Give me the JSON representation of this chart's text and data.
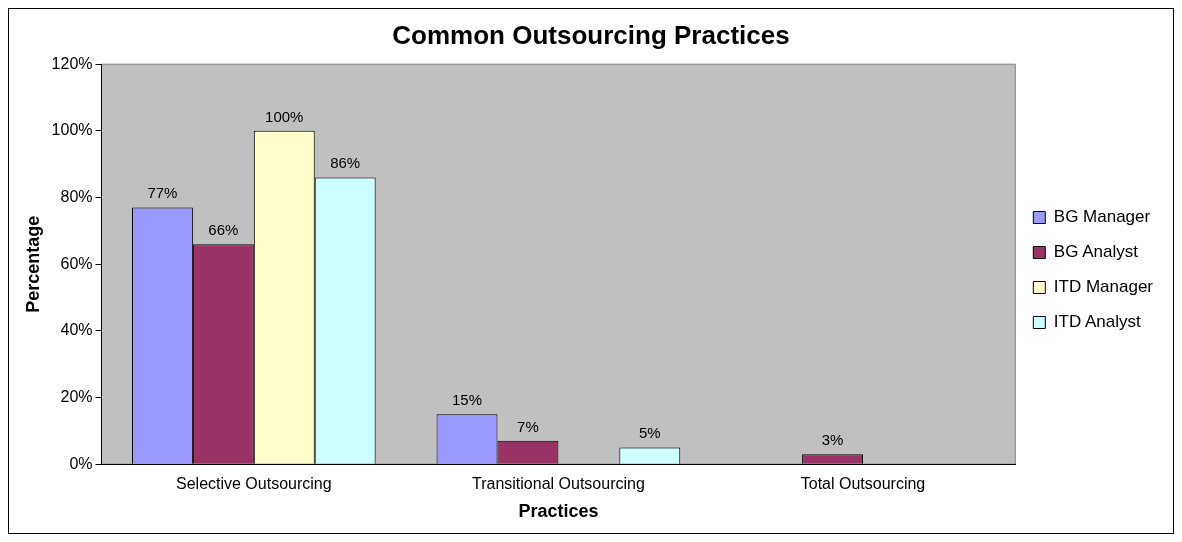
{
  "chart_data": {
    "type": "bar",
    "title": "Common Outsourcing Practices",
    "xlabel": "Practices",
    "ylabel": "Percentage",
    "categories": [
      "Selective Outsourcing",
      "Transitional Outsourcing",
      "Total Outsourcing"
    ],
    "series": [
      {
        "name": "BG Manager",
        "color": "#9999ff",
        "values": [
          77,
          15,
          0
        ],
        "value_labels": [
          "77%",
          "15%",
          null
        ]
      },
      {
        "name": "BG Analyst",
        "color": "#993366",
        "values": [
          66,
          7,
          3
        ],
        "value_labels": [
          "66%",
          "7%",
          "3%"
        ]
      },
      {
        "name": "ITD Manager",
        "color": "#ffffcc",
        "values": [
          100,
          0,
          0
        ],
        "value_labels": [
          "100%",
          null,
          null
        ]
      },
      {
        "name": "ITD Analyst",
        "color": "#ccffff",
        "values": [
          86,
          5,
          0
        ],
        "value_labels": [
          "86%",
          "5%",
          null
        ]
      }
    ],
    "ylim": [
      0,
      120
    ],
    "yticks": [
      {
        "value": 0,
        "label": "0%"
      },
      {
        "value": 20,
        "label": "20%"
      },
      {
        "value": 40,
        "label": "40%"
      },
      {
        "value": 60,
        "label": "60%"
      },
      {
        "value": 80,
        "label": "80%"
      },
      {
        "value": 100,
        "label": "100%"
      },
      {
        "value": 120,
        "label": "120%"
      }
    ],
    "grid": false,
    "legend": "right"
  }
}
